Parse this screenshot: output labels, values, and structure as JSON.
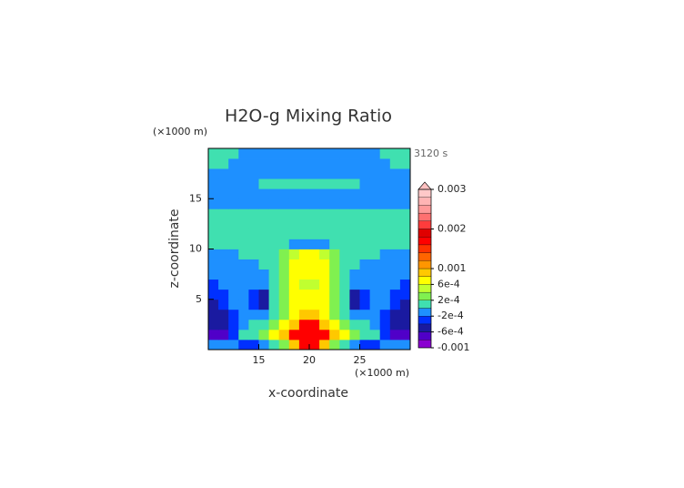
{
  "chart_data": {
    "type": "contour",
    "title": "H2O-g Mixing Ratio",
    "time_label": "3120 s",
    "x_label": "x-coordinate",
    "y_label": "z-coordinate",
    "x_unit": "(×1000 m)",
    "y_unit": "(×1000 m)",
    "xlim": [
      10,
      30
    ],
    "ylim": [
      0,
      20
    ],
    "xticks": [
      15,
      20,
      25
    ],
    "yticks": [
      5,
      10,
      15
    ],
    "x": [
      10.5,
      11.5,
      12.5,
      13.5,
      14.5,
      15.5,
      16.5,
      17.5,
      18.5,
      19.5,
      20.5,
      21.5,
      22.5,
      23.5,
      24.5,
      25.5,
      26.5,
      27.5,
      28.5,
      29.5
    ],
    "y": [
      0.5,
      1.5,
      2.5,
      3.5,
      4.5,
      5.5,
      6.5,
      7.5,
      8.5,
      9.5,
      10.5,
      11.5,
      12.5,
      13.5,
      14.5,
      15.5,
      16.5,
      17.5,
      18.5,
      19.5
    ],
    "z": [
      [
        -0.0001,
        -0.0001,
        -0.0001,
        -0.0003,
        -0.0003,
        -0.0001,
        0.0001,
        0.0003,
        0.0009,
        0.0017,
        0.0017,
        0.0009,
        0.0003,
        0.0001,
        -0.0001,
        -0.0003,
        -0.0003,
        -0.0001,
        -0.0001,
        -0.0001
      ],
      [
        -0.0007,
        -0.0007,
        -0.0003,
        0.0001,
        0.0001,
        0.0003,
        0.0007,
        0.0009,
        0.0017,
        0.0017,
        0.0017,
        0.0017,
        0.0009,
        0.0007,
        0.0003,
        0.0001,
        0.0001,
        -0.0003,
        -0.0007,
        -0.0007
      ],
      [
        -0.0005,
        -0.0005,
        -0.0003,
        -0.0001,
        0.0001,
        0.0001,
        0.0003,
        0.0007,
        0.0009,
        0.0017,
        0.0017,
        0.0009,
        0.0007,
        0.0003,
        0.0001,
        0.0001,
        -0.0001,
        -0.0003,
        -0.0005,
        -0.0005
      ],
      [
        -0.0005,
        -0.0005,
        -0.0003,
        -0.0001,
        -0.0001,
        -0.0001,
        0.0001,
        0.0003,
        0.0007,
        0.0009,
        0.0009,
        0.0007,
        0.0003,
        0.0001,
        -0.0001,
        -0.0001,
        -0.0001,
        -0.0003,
        -0.0005,
        -0.0005
      ],
      [
        -0.0005,
        -0.0003,
        -0.0001,
        -0.0001,
        -0.0003,
        -0.0005,
        0.0001,
        0.0003,
        0.0007,
        0.0007,
        0.0007,
        0.0007,
        0.0003,
        0.0001,
        -0.0005,
        -0.0003,
        -0.0001,
        -0.0001,
        -0.0003,
        -0.0005
      ],
      [
        -0.0003,
        -0.0003,
        -0.0001,
        -0.0001,
        -0.0003,
        -0.0005,
        0.0001,
        0.0003,
        0.0007,
        0.0007,
        0.0007,
        0.0007,
        0.0003,
        0.0001,
        -0.0005,
        -0.0003,
        -0.0001,
        -0.0001,
        -0.0003,
        -0.0003
      ],
      [
        -0.0003,
        -0.0001,
        -0.0001,
        -0.0001,
        -0.0001,
        -0.0001,
        0.0001,
        0.0003,
        0.0007,
        0.0005,
        0.0005,
        0.0007,
        0.0003,
        0.0001,
        -0.0001,
        -0.0001,
        -0.0001,
        -0.0001,
        -0.0001,
        -0.0003
      ],
      [
        -0.0001,
        -0.0001,
        -0.0001,
        -0.0001,
        -0.0001,
        -0.0001,
        0.0001,
        0.0003,
        0.0007,
        0.0007,
        0.0007,
        0.0007,
        0.0003,
        0.0001,
        -0.0001,
        -0.0001,
        -0.0001,
        -0.0001,
        -0.0001,
        -0.0001
      ],
      [
        -0.0001,
        -0.0001,
        -0.0001,
        -0.0001,
        -0.0001,
        0.0001,
        0.0001,
        0.0003,
        0.0007,
        0.0007,
        0.0007,
        0.0007,
        0.0003,
        0.0001,
        0.0001,
        -0.0001,
        -0.0001,
        -0.0001,
        -0.0001,
        -0.0001
      ],
      [
        -0.0001,
        -0.0001,
        -0.0001,
        0.0001,
        0.0001,
        0.0001,
        0.0001,
        0.0003,
        0.0005,
        0.0007,
        0.0007,
        0.0005,
        0.0003,
        0.0001,
        0.0001,
        0.0001,
        0.0001,
        -0.0001,
        -0.0001,
        -0.0001
      ],
      [
        0.0001,
        0.0001,
        0.0001,
        0.0001,
        0.0001,
        0.0001,
        0.0001,
        0.0001,
        -0.0001,
        -0.0001,
        -0.0001,
        -0.0001,
        0.0001,
        0.0001,
        0.0001,
        0.0001,
        0.0001,
        0.0001,
        0.0001,
        0.0001
      ],
      [
        0.0001,
        0.0001,
        0.0001,
        0.0001,
        0.0001,
        0.0001,
        0.0001,
        0.0001,
        0.0001,
        0.0001,
        0.0001,
        0.0001,
        0.0001,
        0.0001,
        0.0001,
        0.0001,
        0.0001,
        0.0001,
        0.0001,
        0.0001
      ],
      [
        0.0001,
        0.0001,
        0.0001,
        0.0001,
        0.0001,
        0.0001,
        0.0001,
        0.0001,
        0.0001,
        0.0001,
        0.0001,
        0.0001,
        0.0001,
        0.0001,
        0.0001,
        0.0001,
        0.0001,
        0.0001,
        0.0001,
        0.0001
      ],
      [
        0.0001,
        0.0001,
        0.0001,
        0.0001,
        0.0001,
        0.0001,
        0.0001,
        0.0001,
        0.0001,
        0.0001,
        0.0001,
        0.0001,
        0.0001,
        0.0001,
        0.0001,
        0.0001,
        0.0001,
        0.0001,
        0.0001,
        0.0001
      ],
      [
        -0.0001,
        -0.0001,
        -0.0001,
        -0.0001,
        -0.0001,
        -0.0001,
        -0.0001,
        -0.0001,
        -0.0001,
        -0.0001,
        -0.0001,
        -0.0001,
        -0.0001,
        -0.0001,
        -0.0001,
        -0.0001,
        -0.0001,
        -0.0001,
        -0.0001,
        -0.0001
      ],
      [
        -0.0001,
        -0.0001,
        -0.0001,
        -0.0001,
        -0.0001,
        -0.0001,
        -0.0001,
        -0.0001,
        -0.0001,
        -0.0001,
        -0.0001,
        -0.0001,
        -0.0001,
        -0.0001,
        -0.0001,
        -0.0001,
        -0.0001,
        -0.0001,
        -0.0001,
        -0.0001
      ],
      [
        -0.0001,
        -0.0001,
        -0.0001,
        -0.0001,
        -0.0001,
        0.0001,
        0.0001,
        0.0001,
        0.0001,
        0.0001,
        0.0001,
        0.0001,
        0.0001,
        0.0001,
        0.0001,
        -0.0001,
        -0.0001,
        -0.0001,
        -0.0001,
        -0.0001
      ],
      [
        -0.0001,
        -0.0001,
        -0.0001,
        -0.0001,
        -0.0001,
        -0.0001,
        -0.0001,
        -0.0001,
        -0.0001,
        -0.0001,
        -0.0001,
        -0.0001,
        -0.0001,
        -0.0001,
        -0.0001,
        -0.0001,
        -0.0001,
        -0.0001,
        -0.0001,
        -0.0001
      ],
      [
        0.0001,
        0.0001,
        -0.0001,
        -0.0001,
        -0.0001,
        -0.0001,
        -0.0001,
        -0.0001,
        -0.0001,
        -0.0001,
        -0.0001,
        -0.0001,
        -0.0001,
        -0.0001,
        -0.0001,
        -0.0001,
        -0.0001,
        -0.0001,
        0.0001,
        0.0001
      ],
      [
        0.0001,
        0.0001,
        0.0001,
        -0.0001,
        -0.0001,
        -0.0001,
        -0.0001,
        -0.0001,
        -0.0001,
        -0.0001,
        -0.0001,
        -0.0001,
        -0.0001,
        -0.0001,
        -0.0001,
        -0.0001,
        -0.0001,
        0.0001,
        0.0001,
        0.0001
      ]
    ],
    "colorbar": {
      "levels": [
        -0.001,
        -0.0008,
        -0.0006,
        -0.0004,
        -0.0002,
        0,
        0.0002,
        0.0004,
        0.0006,
        0.0008,
        0.001,
        0.0012,
        0.0014,
        0.0016,
        0.0018,
        0.002,
        0.0022,
        0.0024,
        0.0026,
        0.0028,
        0.003
      ],
      "colors": [
        "#8a00d0",
        "#5000c8",
        "#1a1aa0",
        "#0030ff",
        "#1e90ff",
        "#40e0b0",
        "#80f050",
        "#c0ff30",
        "#ffff00",
        "#ffc800",
        "#ff9600",
        "#ff6400",
        "#ff3200",
        "#ff0000",
        "#e00000",
        "#ff3c3c",
        "#ff7070",
        "#ff9999",
        "#ffb4b4",
        "#ffc8c8"
      ],
      "extend_color": "#ffc0c0",
      "ticks": [
        -0.001,
        {
          "value": -0.0006,
          "label": "-6e-4"
        },
        {
          "value": -0.0002,
          "label": "-2e-4"
        },
        {
          "value": 0.0002,
          "label": "2e-4"
        },
        {
          "value": 0.0006,
          "label": "6e-4"
        },
        0.001,
        0.002,
        0.003
      ]
    }
  }
}
